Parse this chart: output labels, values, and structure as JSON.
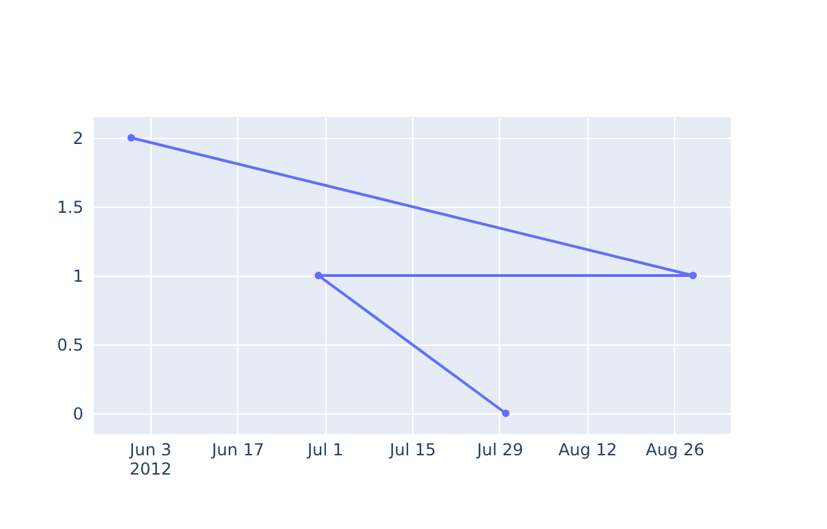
{
  "chart_data": {
    "type": "line",
    "x": [
      "2012-05-31",
      "2012-08-29",
      "2012-06-30",
      "2012-07-30"
    ],
    "series": [
      {
        "color": "#636efa",
        "values": [
          2,
          1,
          1,
          0
        ]
      }
    ],
    "xlim": [
      "2012-05-25",
      "2012-09-04"
    ],
    "xticks": [
      {
        "value": "2012-06-03",
        "label": "Jun 3\n2012"
      },
      {
        "value": "2012-06-17",
        "label": "Jun 17"
      },
      {
        "value": "2012-07-01",
        "label": "Jul 1"
      },
      {
        "value": "2012-07-15",
        "label": "Jul 15"
      },
      {
        "value": "2012-07-29",
        "label": "Jul 29"
      },
      {
        "value": "2012-08-12",
        "label": "Aug 12"
      },
      {
        "value": "2012-08-26",
        "label": "Aug 26"
      }
    ],
    "ylim": [
      -0.15,
      2.15
    ],
    "yticks": [
      0,
      0.5,
      1,
      1.5,
      2
    ],
    "grid": true,
    "marker": "circle",
    "line_style": "solid"
  }
}
